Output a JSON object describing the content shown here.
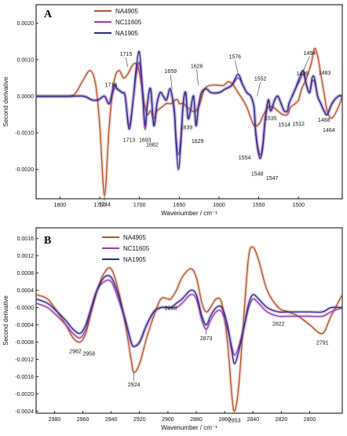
{
  "chart_data": [
    {
      "panel_label": "A",
      "type": "line",
      "xlabel": "Wavenumber / cm⁻¹",
      "ylabel": "Second derivative",
      "xlim": [
        1830,
        1445
      ],
      "ylim": [
        -0.0028,
        0.0025
      ],
      "xticks": [
        1800,
        1750,
        1700,
        1650,
        1600,
        1550,
        1500
      ],
      "yticks": [
        0.002,
        0.001,
        0.0,
        -0.001,
        -0.002
      ],
      "ytick_labels": [
        "0.0020",
        "0.0010",
        "0.0000",
        "-0.0010",
        "-0.0020"
      ],
      "legend_position": "top-left",
      "series": [
        {
          "name": "NA4905",
          "color": "#b8532a",
          "x": [
            1830,
            1790,
            1780,
            1772,
            1762,
            1755,
            1750,
            1746,
            1744,
            1742,
            1738,
            1732,
            1726,
            1720,
            1715,
            1710,
            1706,
            1702,
            1698,
            1694,
            1690,
            1686,
            1682,
            1678,
            1672,
            1666,
            1660,
            1655,
            1652,
            1650,
            1648,
            1645,
            1640,
            1634,
            1629,
            1624,
            1618,
            1610,
            1600,
            1594,
            1588,
            1582,
            1576,
            1570,
            1565,
            1560,
            1556,
            1552,
            1548,
            1544,
            1538,
            1532,
            1526,
            1520,
            1514,
            1510,
            1504,
            1500,
            1496,
            1490,
            1484,
            1480,
            1476,
            1472,
            1468,
            1464,
            1458,
            1450,
            1445
          ],
          "y": [
            0.0,
            0.0,
            0.0001,
            0.0004,
            0.0007,
            0.0003,
            -0.0008,
            -0.0023,
            -0.0027,
            -0.0023,
            -0.0008,
            0.0004,
            0.0007,
            0.0005,
            0.0006,
            0.0008,
            0.0009,
            0.0008,
            0.0004,
            -0.0002,
            -0.0005,
            -0.0004,
            -0.0006,
            -0.0004,
            -0.0003,
            -0.0002,
            -0.0002,
            -0.0001,
            -0.0001,
            -0.0002,
            -0.0002,
            -0.0002,
            -0.0003,
            -0.0004,
            -0.0004,
            -0.0002,
            0.0002,
            0.0003,
            0.0003,
            0.0003,
            0.0004,
            0.0003,
            0.0001,
            -0.0001,
            -0.0003,
            -0.0006,
            -0.0008,
            -0.0008,
            -0.0007,
            -0.0005,
            -0.0003,
            -0.0003,
            -0.0004,
            -0.0005,
            -0.0005,
            -0.0003,
            -0.0002,
            -0.0001,
            0.0002,
            0.0005,
            0.0009,
            0.0013,
            0.0011,
            0.0006,
            0.0001,
            -0.0004,
            -0.0006,
            -0.0003,
            0.0
          ]
        },
        {
          "name": "NC11605",
          "color": "#9b3ea8",
          "x": [
            1830,
            1790,
            1770,
            1760,
            1752,
            1744,
            1738,
            1732,
            1728,
            1722,
            1718,
            1713,
            1708,
            1704,
            1700,
            1696,
            1693,
            1690,
            1686,
            1682,
            1678,
            1674,
            1670,
            1666,
            1662,
            1659,
            1656,
            1654,
            1651,
            1648,
            1645,
            1642,
            1639,
            1636,
            1632,
            1629,
            1626,
            1622,
            1616,
            1610,
            1600,
            1592,
            1584,
            1576,
            1570,
            1565,
            1560,
            1556,
            1554,
            1551,
            1548,
            1545,
            1542,
            1538,
            1535,
            1530,
            1526,
            1522,
            1518,
            1514,
            1512,
            1508,
            1504,
            1499,
            1494,
            1490,
            1486,
            1483,
            1480,
            1476,
            1472,
            1468,
            1464,
            1458,
            1450,
            1445
          ],
          "y": [
            0.0,
            0.0,
            0.0,
            -0.0001,
            -0.0001,
            0.0,
            -0.0002,
            0.0002,
            0.0002,
            0.0001,
            0.0,
            -0.0008,
            -0.0001,
            0.0006,
            0.0009,
            0.0,
            -0.0009,
            -0.0002,
            0.0002,
            -0.0008,
            -0.0002,
            0.0001,
            0.0,
            -0.0001,
            0.0002,
            0.0,
            -0.0004,
            -0.0011,
            -0.0016,
            -0.0011,
            -0.0002,
            0.0001,
            -0.0006,
            -0.0004,
            0.0,
            -0.0008,
            -0.0003,
            0.0001,
            0.0002,
            0.0001,
            0.0001,
            0.0002,
            0.0003,
            0.0005,
            0.0003,
            0.0001,
            0.0,
            -0.0003,
            -0.0009,
            -0.0014,
            -0.0016,
            -0.0013,
            -0.0006,
            -0.0001,
            -0.0004,
            -0.0001,
            0.0,
            -0.0002,
            -0.0004,
            -0.0004,
            -0.0002,
            0.0,
            0.0002,
            0.0004,
            0.0006,
            0.0003,
            0.0001,
            0.0004,
            0.0004,
            0.0,
            -0.0002,
            -0.0004,
            -0.0005,
            -0.0002,
            0.0,
            0.0
          ]
        },
        {
          "name": "NA1905",
          "color": "#2c2c8c",
          "x": [
            1830,
            1790,
            1770,
            1760,
            1752,
            1744,
            1738,
            1732,
            1728,
            1722,
            1718,
            1713,
            1708,
            1704,
            1700,
            1696,
            1693,
            1690,
            1686,
            1682,
            1678,
            1674,
            1670,
            1666,
            1662,
            1659,
            1656,
            1654,
            1651,
            1648,
            1645,
            1642,
            1639,
            1636,
            1632,
            1629,
            1626,
            1622,
            1616,
            1610,
            1600,
            1592,
            1584,
            1576,
            1570,
            1565,
            1560,
            1556,
            1554,
            1551,
            1548,
            1545,
            1542,
            1538,
            1535,
            1530,
            1526,
            1522,
            1518,
            1514,
            1512,
            1508,
            1504,
            1499,
            1494,
            1490,
            1486,
            1483,
            1480,
            1476,
            1472,
            1468,
            1464,
            1458,
            1450,
            1445
          ],
          "y": [
            0.0,
            0.0,
            0.0,
            -0.0001,
            -0.0001,
            0.0,
            -0.0002,
            0.0003,
            0.0002,
            0.0001,
            0.0,
            -0.0009,
            -0.0001,
            0.0008,
            0.0012,
            0.0001,
            -0.0008,
            -0.0002,
            0.0002,
            -0.0008,
            -0.0002,
            0.0001,
            0.0,
            -0.0001,
            0.0002,
            0.0,
            -0.0005,
            -0.0013,
            -0.002,
            -0.0013,
            -0.0002,
            0.0001,
            -0.0006,
            -0.0004,
            0.0,
            -0.0008,
            -0.0003,
            0.0001,
            0.0002,
            0.0001,
            0.0001,
            0.0002,
            0.0003,
            0.0006,
            0.0003,
            0.0001,
            0.0,
            -0.0003,
            -0.001,
            -0.0015,
            -0.0017,
            -0.0014,
            -0.0007,
            -0.0001,
            -0.0004,
            -0.0001,
            0.0,
            -0.0002,
            -0.0004,
            -0.0004,
            -0.0002,
            0.0,
            0.0002,
            0.0005,
            0.0007,
            0.0003,
            0.0001,
            0.0005,
            0.0005,
            0.0,
            -0.0002,
            -0.0004,
            -0.0005,
            -0.0002,
            0.0,
            0.0
          ]
        }
      ],
      "annotations": [
        {
          "text": "1744",
          "x": 1744,
          "y": -0.0027
        },
        {
          "text": "1715",
          "x": 1715,
          "y": 0.0008
        },
        {
          "text": "1713",
          "x": 1713,
          "y": -0.0009
        },
        {
          "text": "1693",
          "x": 1693,
          "y": -0.0009
        },
        {
          "text": "1682",
          "x": 1682,
          "y": -0.0009
        },
        {
          "text": "1659",
          "x": 1659,
          "y": 0.0002
        },
        {
          "text": "1639",
          "x": 1639,
          "y": -0.0006
        },
        {
          "text": "1629",
          "x": 1629,
          "y": -0.0008
        },
        {
          "text": "1626",
          "x": 1626,
          "y": 0.0003
        },
        {
          "text": "1576",
          "x": 1576,
          "y": 0.0006
        },
        {
          "text": "1554",
          "x": 1554,
          "y": -0.001
        },
        {
          "text": "1552",
          "x": 1552,
          "y": 0.0
        },
        {
          "text": "1548",
          "x": 1548,
          "y": -0.0017
        },
        {
          "text": "1547",
          "x": 1547,
          "y": -0.0016
        },
        {
          "text": "1535",
          "x": 1535,
          "y": -0.0004
        },
        {
          "text": "1514",
          "x": 1514,
          "y": -0.0004
        },
        {
          "text": "1512",
          "x": 1512,
          "y": -0.0002
        },
        {
          "text": "1499",
          "x": 1499,
          "y": 0.0004
        },
        {
          "text": "1718",
          "x": 1718,
          "y": 0.0
        },
        {
          "text": "1494",
          "x": 1494,
          "y": 0.0007
        },
        {
          "text": "1483",
          "x": 1483,
          "y": 0.0005
        },
        {
          "text": "1468",
          "x": 1468,
          "y": -0.0004
        },
        {
          "text": "1464",
          "x": 1464,
          "y": -0.0005
        }
      ]
    },
    {
      "panel_label": "B",
      "type": "line",
      "xlabel": "Wavenumber / cm⁻¹",
      "ylabel": "Second derivative",
      "xlim": [
        2993,
        2777
      ],
      "ylim": [
        -0.00245,
        0.00185
      ],
      "xticks": [
        2980,
        2960,
        2940,
        2920,
        2900,
        2880,
        2860,
        2840,
        2820,
        2800
      ],
      "yticks": [
        0.0016,
        0.0012,
        0.0008,
        0.0004,
        0.0,
        -0.0004,
        -0.0008,
        -0.0012,
        -0.0016,
        -0.002,
        -0.0024
      ],
      "ytick_labels": [
        "0.0016",
        "0.0012",
        "0.0008",
        "0.0004",
        "-0.0000",
        "-0.0004",
        "-0.0008",
        "-0.0012",
        "-0.0016",
        "-0.0020",
        "-0.0024"
      ],
      "legend_position": "top-center",
      "series": [
        {
          "name": "NA4905",
          "color": "#b8532a",
          "x": [
            2993,
            2985,
            2978,
            2972,
            2967,
            2962,
            2958,
            2954,
            2950,
            2945,
            2940,
            2935,
            2930,
            2926,
            2924,
            2920,
            2915,
            2910,
            2905,
            2900,
            2898,
            2894,
            2890,
            2884,
            2880,
            2876,
            2873,
            2870,
            2866,
            2862,
            2858,
            2855,
            2853,
            2850,
            2846,
            2843,
            2840,
            2836,
            2830,
            2822,
            2815,
            2808,
            2800,
            2791,
            2785,
            2777
          ],
          "y": [
            0.0003,
            0.0002,
            -0.0001,
            -0.0004,
            -0.0007,
            -0.0008,
            -0.0006,
            -0.0001,
            0.0004,
            0.0008,
            0.0009,
            0.0004,
            -0.0004,
            -0.0012,
            -0.0015,
            -0.0013,
            -0.0007,
            -0.0002,
            0.0002,
            0.0002,
            0.0002,
            0.0004,
            0.0007,
            0.0009,
            0.0007,
            0.0001,
            -0.0001,
            0.0,
            0.0002,
            0.0001,
            -0.0008,
            -0.002,
            -0.0024,
            -0.0018,
            0.0,
            0.0012,
            0.0014,
            0.0011,
            0.0004,
            0.0,
            -0.0001,
            -0.0002,
            -0.0004,
            -0.0006,
            -0.0002,
            0.0003
          ]
        },
        {
          "name": "NC11605",
          "color": "#9b3ea8",
          "x": [
            2993,
            2985,
            2978,
            2972,
            2967,
            2962,
            2958,
            2954,
            2950,
            2945,
            2940,
            2935,
            2930,
            2926,
            2924,
            2920,
            2915,
            2910,
            2905,
            2900,
            2898,
            2894,
            2890,
            2884,
            2880,
            2876,
            2873,
            2870,
            2866,
            2862,
            2858,
            2855,
            2853,
            2850,
            2846,
            2843,
            2840,
            2836,
            2830,
            2822,
            2815,
            2808,
            2800,
            2791,
            2785,
            2777
          ],
          "y": [
            0.0001,
            0.0,
            -0.0002,
            -0.0004,
            -0.0006,
            -0.0007,
            -0.0005,
            0.0,
            0.0004,
            0.0006,
            0.0006,
            0.0002,
            -0.0003,
            -0.0008,
            -0.0009,
            -0.0008,
            -0.0004,
            -0.0001,
            0.0,
            0.0,
            0.0,
            0.0,
            0.0001,
            0.0003,
            0.0002,
            -0.0003,
            -0.0005,
            -0.0003,
            -0.0001,
            -0.0001,
            -0.0005,
            -0.0009,
            -0.0011,
            -0.0009,
            -0.0004,
            0.0,
            0.0002,
            0.0001,
            -0.0001,
            -0.0002,
            -0.0002,
            -0.0002,
            -0.0002,
            -0.0002,
            -0.0001,
            0.0
          ]
        },
        {
          "name": "NA1905",
          "color": "#2c2c8c",
          "x": [
            2993,
            2985,
            2978,
            2972,
            2967,
            2962,
            2958,
            2954,
            2950,
            2945,
            2940,
            2935,
            2930,
            2926,
            2924,
            2920,
            2915,
            2910,
            2905,
            2900,
            2898,
            2894,
            2890,
            2884,
            2880,
            2876,
            2873,
            2870,
            2866,
            2862,
            2858,
            2855,
            2853,
            2850,
            2846,
            2843,
            2840,
            2836,
            2830,
            2822,
            2815,
            2808,
            2800,
            2791,
            2785,
            2777
          ],
          "y": [
            0.0002,
            0.0001,
            -0.0001,
            -0.0003,
            -0.0005,
            -0.0006,
            -0.0004,
            0.0,
            0.0004,
            0.0007,
            0.0007,
            0.0003,
            -0.0003,
            -0.0008,
            -0.0009,
            -0.0008,
            -0.0004,
            -0.0001,
            0.0,
            0.0,
            0.0,
            0.0001,
            0.0002,
            0.0004,
            0.0003,
            -0.0002,
            -0.0004,
            -0.0002,
            0.0,
            0.0,
            -0.0004,
            -0.001,
            -0.0013,
            -0.001,
            -0.0004,
            0.0001,
            0.0003,
            0.0002,
            0.0,
            -0.0001,
            -0.0001,
            -0.0001,
            -0.0001,
            -0.0001,
            0.0,
            0.0
          ]
        }
      ],
      "annotations": [
        {
          "text": "2962",
          "x": 2962,
          "y": -0.0008
        },
        {
          "text": "2958",
          "x": 2958,
          "y": -0.0006
        },
        {
          "text": "2924",
          "x": 2924,
          "y": -0.0015
        },
        {
          "text": "2898",
          "x": 2898,
          "y": 0.0002
        },
        {
          "text": "2873",
          "x": 2873,
          "y": -0.0005
        },
        {
          "text": "2853",
          "x": 2853,
          "y": -0.0024
        },
        {
          "text": "2822",
          "x": 2822,
          "y": -0.0002
        },
        {
          "text": "2791",
          "x": 2791,
          "y": -0.0006
        }
      ]
    }
  ]
}
